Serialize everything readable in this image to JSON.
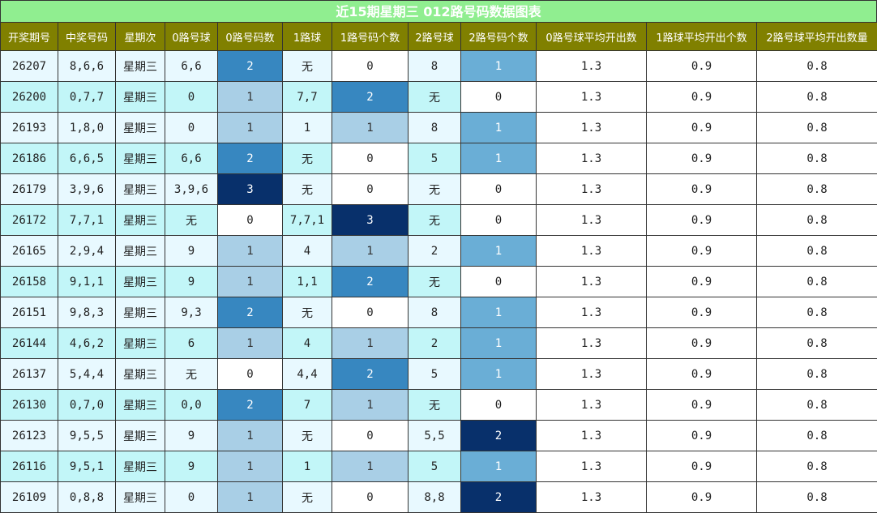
{
  "title": "近15期星期三 012路号码数据图表",
  "table": {
    "headers": [
      "开奖期号",
      "中奖号码",
      "星期次",
      "0路号球",
      "0路号码数",
      "1路球",
      "1路号码个数",
      "2路号球",
      "2路号码个数",
      "0路号球平均开出数",
      "1路球平均开出个数",
      "2路号球平均开出数量"
    ],
    "rows": [
      [
        "26207",
        "8,6,6",
        "星期三",
        "6,6",
        "2",
        "无",
        "0",
        "8",
        "1",
        "1.3",
        "0.9",
        "0.8"
      ],
      [
        "26200",
        "0,7,7",
        "星期三",
        "0",
        "1",
        "7,7",
        "2",
        "无",
        "0",
        "1.3",
        "0.9",
        "0.8"
      ],
      [
        "26193",
        "1,8,0",
        "星期三",
        "0",
        "1",
        "1",
        "1",
        "8",
        "1",
        "1.3",
        "0.9",
        "0.8"
      ],
      [
        "26186",
        "6,6,5",
        "星期三",
        "6,6",
        "2",
        "无",
        "0",
        "5",
        "1",
        "1.3",
        "0.9",
        "0.8"
      ],
      [
        "26179",
        "3,9,6",
        "星期三",
        "3,9,6",
        "3",
        "无",
        "0",
        "无",
        "0",
        "1.3",
        "0.9",
        "0.8"
      ],
      [
        "26172",
        "7,7,1",
        "星期三",
        "无",
        "0",
        "7,7,1",
        "3",
        "无",
        "0",
        "1.3",
        "0.9",
        "0.8"
      ],
      [
        "26165",
        "2,9,4",
        "星期三",
        "9",
        "1",
        "4",
        "1",
        "2",
        "1",
        "1.3",
        "0.9",
        "0.8"
      ],
      [
        "26158",
        "9,1,1",
        "星期三",
        "9",
        "1",
        "1,1",
        "2",
        "无",
        "0",
        "1.3",
        "0.9",
        "0.8"
      ],
      [
        "26151",
        "9,8,3",
        "星期三",
        "9,3",
        "2",
        "无",
        "0",
        "8",
        "1",
        "1.3",
        "0.9",
        "0.8"
      ],
      [
        "26144",
        "4,6,2",
        "星期三",
        "6",
        "1",
        "4",
        "1",
        "2",
        "1",
        "1.3",
        "0.9",
        "0.8"
      ],
      [
        "26137",
        "5,4,4",
        "星期三",
        "无",
        "0",
        "4,4",
        "2",
        "5",
        "1",
        "1.3",
        "0.9",
        "0.8"
      ],
      [
        "26130",
        "0,7,0",
        "星期三",
        "0,0",
        "2",
        "7",
        "1",
        "无",
        "0",
        "1.3",
        "0.9",
        "0.8"
      ],
      [
        "26123",
        "9,5,5",
        "星期三",
        "9",
        "1",
        "无",
        "0",
        "5,5",
        "2",
        "1.3",
        "0.9",
        "0.8"
      ],
      [
        "26116",
        "9,5,1",
        "星期三",
        "9",
        "1",
        "1",
        "1",
        "5",
        "1",
        "1.3",
        "0.9",
        "0.8"
      ],
      [
        "26109",
        "0,8,8",
        "星期三",
        "0",
        "1",
        "无",
        "0",
        "8,8",
        "2",
        "1.3",
        "0.9",
        "0.8"
      ]
    ]
  }
}
